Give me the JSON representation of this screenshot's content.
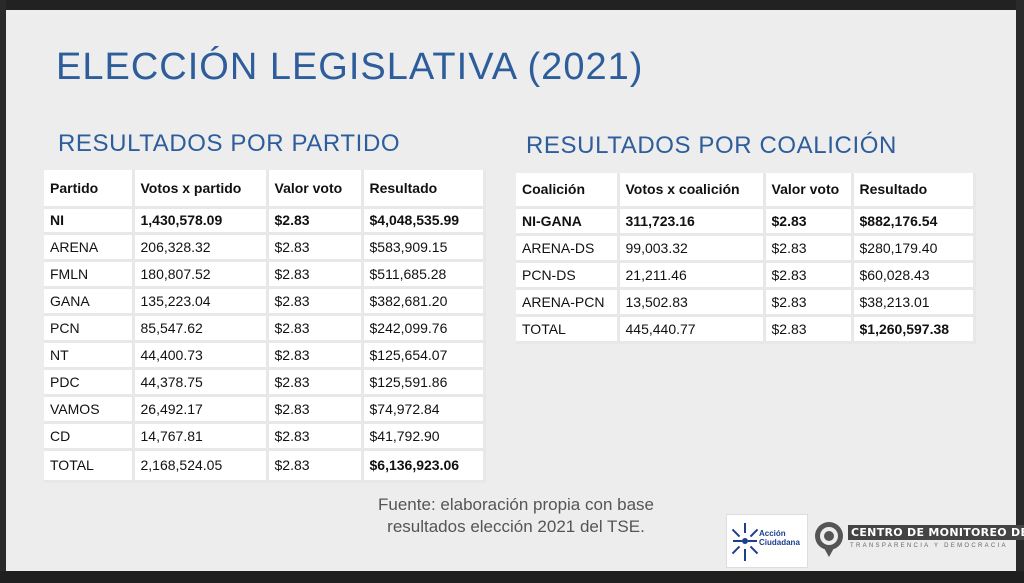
{
  "slide": {
    "title": "ELECCIÓN LEGISLATIVA (2021)",
    "party_section_title": "RESULTADOS POR PARTIDO",
    "coalition_section_title": "RESULTADOS POR COALICIÓN",
    "source_line1": "Fuente: elaboración propia con base",
    "source_line2": "resultados elección 2021 del TSE."
  },
  "party_table": {
    "headers": [
      "Partido",
      "Votos x partido",
      "Valor voto",
      "Resultado"
    ],
    "rows": [
      [
        "NI",
        "1,430,578.09",
        "$2.83",
        "$4,048,535.99"
      ],
      [
        "ARENA",
        "206,328.32",
        "$2.83",
        "$583,909.15"
      ],
      [
        "FMLN",
        "180,807.52",
        "$2.83",
        "$511,685.28"
      ],
      [
        "GANA",
        "135,223.04",
        "$2.83",
        "$382,681.20"
      ],
      [
        "PCN",
        "85,547.62",
        "$2.83",
        "$242,099.76"
      ],
      [
        "NT",
        "44,400.73",
        "$2.83",
        "$125,654.07"
      ],
      [
        "PDC",
        "44,378.75",
        "$2.83",
        "$125,591.86"
      ],
      [
        "VAMOS",
        "26,492.17",
        "$2.83",
        "$74,972.84"
      ],
      [
        "CD",
        "14,767.81",
        "$2.83",
        "$41,792.90"
      ],
      [
        "TOTAL",
        "2,168,524.05",
        "$2.83",
        "$6,136,923.06"
      ]
    ]
  },
  "coalition_table": {
    "headers": [
      "Coalición",
      "Votos x coalición",
      "Valor voto",
      "Resultado"
    ],
    "rows": [
      [
        "NI-GANA",
        "311,723.16",
        "$2.83",
        "$882,176.54"
      ],
      [
        "ARENA-DS",
        "99,003.32",
        "$2.83",
        "$280,179.40"
      ],
      [
        "PCN-DS",
        "21,211.46",
        "$2.83",
        "$60,028.43"
      ],
      [
        "ARENA-PCN",
        "13,502.83",
        "$2.83",
        "$38,213.01"
      ],
      [
        "TOTAL",
        "445,440.77",
        "$2.83",
        "$1,260,597.38"
      ]
    ]
  },
  "logos": {
    "accion_line1": "Acción",
    "accion_line2": "Ciudadana",
    "centro_name": "CENTRO DE MONITOREO DE",
    "centro_tagline": "TRANSPARENCIA Y DEMOCRACIA",
    "accent_color": "#2e5d9c",
    "logo_blue": "#1a3f8f"
  }
}
